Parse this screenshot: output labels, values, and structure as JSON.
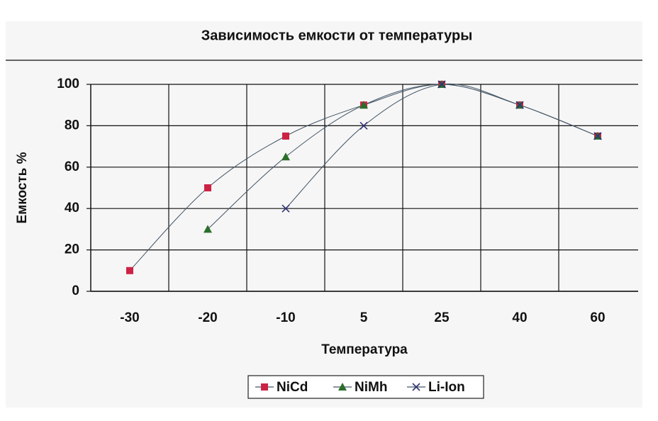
{
  "chart_data": {
    "type": "line",
    "title": "Зависимость емкости от температуры",
    "x_label": "Температура",
    "y_label": "Емкость %",
    "categories": [
      "-30",
      "-20",
      "-10",
      "5",
      "25",
      "40",
      "60"
    ],
    "series": [
      {
        "name": "NiCd",
        "color": "#cc2244",
        "marker": "square",
        "values": [
          10,
          50,
          75,
          90,
          100,
          90,
          75
        ]
      },
      {
        "name": "NiMh",
        "color": "#2a6e2a",
        "marker": "triangle",
        "values": [
          null,
          30,
          65,
          90,
          100,
          90,
          75
        ]
      },
      {
        "name": "Li-Ion",
        "color": "#333377",
        "marker": "x",
        "values": [
          null,
          null,
          40,
          80,
          100,
          90,
          75
        ]
      }
    ],
    "ylim": [
      0,
      100
    ],
    "yticks": [
      0,
      20,
      40,
      60,
      80,
      100
    ],
    "grid": true,
    "legend": "bottom"
  }
}
